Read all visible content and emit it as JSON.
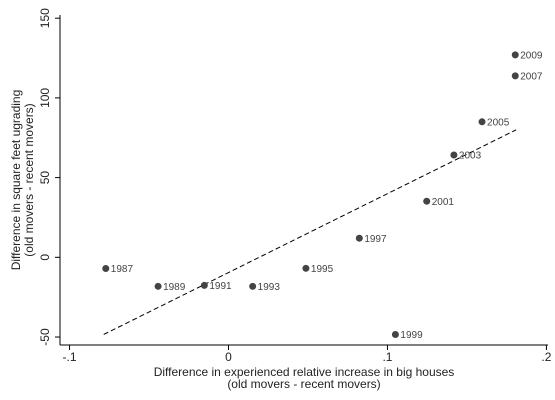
{
  "chart_data": {
    "type": "scatter",
    "x_label": [
      "Difference in experienced relative increase in big houses",
      "(old movers - recent movers)"
    ],
    "y_label": [
      "Difference in square feet ugrading",
      "(old movers - recent movers)"
    ],
    "series": [
      {
        "color": "#444444",
        "labels": [
          "1987",
          "1989",
          "1991",
          "1993",
          "1995",
          "1997",
          "1999",
          "2001",
          "2003",
          "2005",
          "2007",
          "2009"
        ],
        "x": [
          -0.0772,
          -0.0443,
          -0.0152,
          0.0152,
          0.0487,
          0.0823,
          0.105,
          0.1247,
          0.1418,
          0.1595,
          0.1804,
          0.1804
        ],
        "values": [
          -7,
          -18.2,
          -17.6,
          -18.2,
          -6.9,
          12,
          -48.4,
          35.2,
          64.2,
          85,
          113.8,
          127
        ]
      }
    ],
    "fit_line": {
      "x": [
        -0.0785,
        0.181
      ],
      "values": [
        -48.4,
        80
      ]
    },
    "xlim": [
      -0.106,
      0.201
    ],
    "xticks": [
      {
        "value": -0.1,
        "label": "-.1"
      },
      {
        "value": 0,
        "label": "0"
      },
      {
        "value": 0.1,
        "label": ".1"
      },
      {
        "value": 0.2,
        "label": ".2"
      }
    ],
    "ylim": [
      -55,
      152
    ],
    "yticks": [
      -50,
      0,
      50,
      100,
      150
    ]
  }
}
